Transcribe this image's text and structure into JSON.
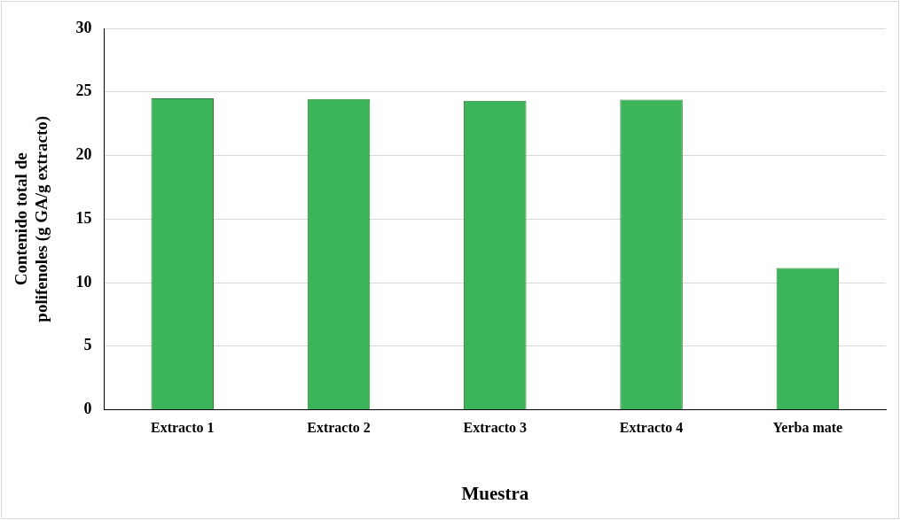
{
  "chart_data": {
    "type": "bar",
    "xlabel": "Muestra",
    "ylabel": "Contenido total de polifenoles (g GA/g extracto)",
    "categories": [
      "Extracto 1",
      "Extracto 2",
      "Extracto 3",
      "Extracto 4",
      "Yerba mate"
    ],
    "values": [
      24.5,
      24.45,
      24.3,
      24.4,
      11.15
    ],
    "color": "#3cb55a",
    "ylim": [
      0,
      30
    ],
    "yticks": [
      0,
      5,
      10,
      15,
      20,
      25,
      30
    ],
    "grid": "y",
    "legend": false
  }
}
